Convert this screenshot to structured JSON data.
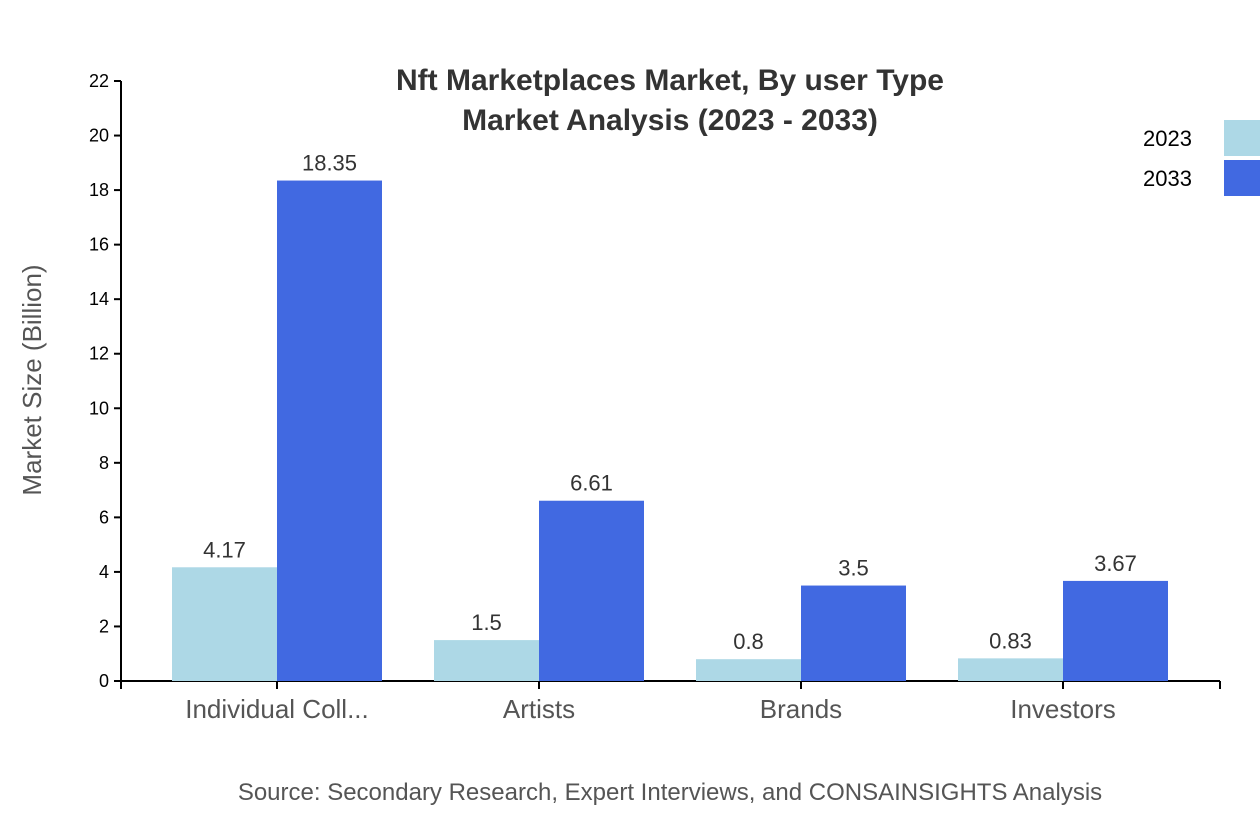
{
  "chart_data": {
    "type": "bar",
    "title": [
      "Nft Marketplaces Market, By user Type",
      "Market Analysis (2023 - 2033)"
    ],
    "xlabel": "",
    "ylabel": "Market Size (Billion)",
    "ylim": [
      0,
      22
    ],
    "yticks": [
      0,
      2,
      4,
      6,
      8,
      10,
      12,
      14,
      16,
      18,
      20,
      22
    ],
    "categories": [
      "Individual Coll...",
      "Artists",
      "Brands",
      "Investors"
    ],
    "series": [
      {
        "name": "2023",
        "color": "#add8e6",
        "values": [
          4.17,
          1.5,
          0.8,
          0.83
        ]
      },
      {
        "name": "2033",
        "color": "#4169e1",
        "values": [
          18.35,
          6.61,
          3.5,
          3.67
        ]
      }
    ],
    "legend_placement": "top-right",
    "grid": false
  },
  "source": "Source: Secondary Research, Expert Interviews, and CONSAINSIGHTS Analysis"
}
